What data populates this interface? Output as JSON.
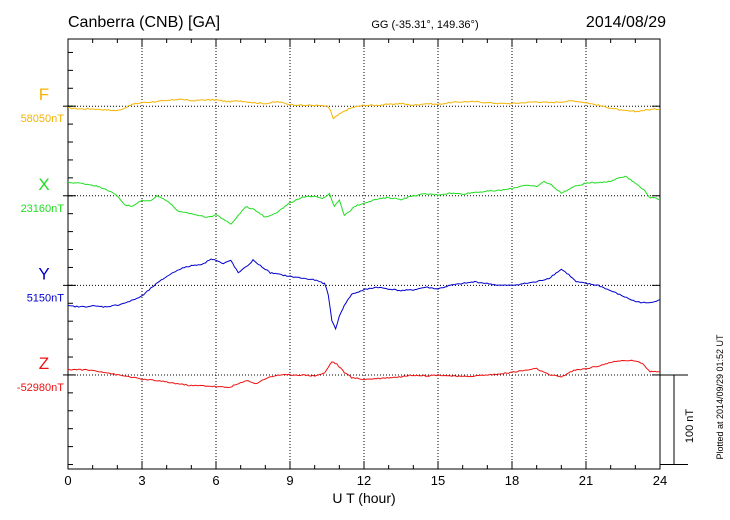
{
  "header": {
    "station": "Canberra (CNB)  [GA]",
    "coords": "GG (-35.31°, 149.36°)",
    "date": "2014/08/29"
  },
  "footer": {
    "plotted": "Plotted at 2014/09/29 01:52 UT"
  },
  "chart_data": {
    "type": "line",
    "title": "Canberra (CNB)  [GA]",
    "xlabel": "U T (hour)",
    "ylabel": "",
    "xlim": [
      0,
      24
    ],
    "x_ticks": [
      0,
      3,
      6,
      9,
      12,
      15,
      18,
      21,
      24
    ],
    "x_tick_labels": [
      "0",
      "3",
      "6",
      "9",
      "12",
      "15",
      "18",
      "21",
      "24"
    ],
    "grid": true,
    "scale_bar_label": "100 nT",
    "scale_bar_nT": 100,
    "stack_spacing_nT": 100,
    "y_range_nT": [
      -105,
      375
    ],
    "series": [
      {
        "name": "F",
        "baseline_label": "58050nT",
        "baseline_nT": 58050,
        "stack_offset_nT": 300,
        "color": "#f5b400",
        "x": [
          0,
          0.5,
          1,
          1.5,
          2,
          2.3,
          2.6,
          3,
          3.5,
          4,
          4.5,
          5,
          5.5,
          6,
          6.5,
          7,
          7.5,
          8,
          8.5,
          9,
          9.5,
          10,
          10.5,
          10.65,
          10.75,
          11,
          11.3,
          11.6,
          12,
          12.5,
          13,
          13.5,
          14,
          14.5,
          15,
          15.5,
          16,
          16.5,
          17,
          17.5,
          18,
          18.5,
          19,
          19.5,
          20,
          20.5,
          21,
          21.5,
          22,
          22.5,
          23,
          23.5,
          24
        ],
        "y": [
          -2,
          -3,
          -3,
          -4,
          -5,
          -2,
          2,
          4,
          5,
          6,
          8,
          6,
          7,
          7,
          5,
          6,
          4,
          3,
          5,
          2,
          1,
          1,
          0,
          -5,
          -14,
          -9,
          -4,
          -1,
          1,
          1,
          2,
          3,
          1,
          3,
          2,
          4,
          5,
          5,
          4,
          3,
          3,
          4,
          5,
          4,
          5,
          6,
          4,
          1,
          -2,
          -5,
          -6,
          -4,
          -3
        ]
      },
      {
        "name": "X",
        "baseline_label": "23160nT",
        "baseline_nT": 23160,
        "stack_offset_nT": 200,
        "color": "#22dd22",
        "x": [
          0,
          0.5,
          1,
          1.5,
          2,
          2.3,
          2.6,
          3,
          3.3,
          3.6,
          4,
          4.5,
          5,
          5.3,
          5.7,
          6,
          6.3,
          6.6,
          6.9,
          7.2,
          7.6,
          8,
          8.5,
          9,
          9.5,
          10,
          10.3,
          10.6,
          10.8,
          11,
          11.2,
          11.4,
          11.6,
          12,
          12.5,
          13,
          13.5,
          14,
          14.5,
          15,
          15.5,
          16,
          16.5,
          17,
          17.5,
          18,
          18.5,
          19,
          19.3,
          19.6,
          20,
          20.5,
          21,
          21.5,
          22,
          22.3,
          22.6,
          23,
          23.3,
          23.6,
          24
        ],
        "y": [
          15,
          14,
          12,
          8,
          0,
          -10,
          -12,
          -5,
          -6,
          0,
          -5,
          -18,
          -20,
          -22,
          -24,
          -21,
          -26,
          -32,
          -22,
          -12,
          -16,
          -24,
          -18,
          -8,
          -2,
          0,
          -3,
          2,
          -12,
          -5,
          -22,
          -18,
          -12,
          -8,
          -4,
          -2,
          -4,
          0,
          2,
          1,
          3,
          2,
          4,
          5,
          6,
          8,
          12,
          10,
          16,
          12,
          3,
          10,
          14,
          15,
          16,
          20,
          22,
          14,
          8,
          -2,
          -4
        ]
      },
      {
        "name": "Y",
        "baseline_label": "5150nT",
        "baseline_nT": 5150,
        "stack_offset_nT": 100,
        "color": "#0000cc",
        "x": [
          0,
          0.5,
          1,
          1.5,
          2,
          2.5,
          3,
          3.5,
          4,
          4.5,
          5,
          5.5,
          5.8,
          6,
          6.3,
          6.6,
          6.9,
          7.2,
          7.5,
          7.8,
          8.2,
          8.6,
          9,
          9.5,
          10,
          10.4,
          10.55,
          10.7,
          10.85,
          11,
          11.2,
          11.5,
          12,
          12.5,
          13,
          13.5,
          14,
          14.5,
          15,
          15.5,
          16,
          16.5,
          17,
          17.5,
          18,
          18.5,
          19,
          19.5,
          20,
          20.3,
          20.6,
          21,
          21.5,
          22,
          22.5,
          23,
          23.5,
          24
        ],
        "y": [
          -23,
          -24,
          -23,
          -24,
          -22,
          -18,
          -12,
          0,
          10,
          18,
          22,
          24,
          30,
          28,
          24,
          28,
          14,
          20,
          28,
          22,
          14,
          12,
          10,
          8,
          6,
          2,
          -10,
          -40,
          -48,
          -35,
          -22,
          -10,
          -5,
          -2,
          -4,
          -6,
          -5,
          -2,
          -4,
          0,
          2,
          4,
          2,
          0,
          0,
          2,
          4,
          8,
          18,
          12,
          4,
          2,
          0,
          -6,
          -12,
          -18,
          -20,
          -16
        ]
      },
      {
        "name": "Z",
        "baseline_label": "-52980nT",
        "baseline_nT": -52980,
        "stack_offset_nT": 0,
        "color": "#ee1111",
        "x": [
          0,
          0.5,
          1,
          1.5,
          2,
          2.5,
          3,
          3.5,
          4,
          4.5,
          5,
          5.5,
          6,
          6.5,
          7,
          7.3,
          7.6,
          8,
          8.5,
          9,
          9.5,
          10,
          10.4,
          10.7,
          10.9,
          11.2,
          11.5,
          12,
          12.5,
          13,
          13.5,
          14,
          14.5,
          15,
          15.5,
          16,
          16.5,
          17,
          17.5,
          18,
          18.5,
          19,
          19.5,
          20,
          20.5,
          21,
          21.5,
          22,
          22.5,
          23,
          23.3,
          23.6,
          24
        ],
        "y": [
          6,
          6,
          5,
          3,
          0,
          -2,
          -5,
          -6,
          -8,
          -10,
          -12,
          -12,
          -13,
          -14,
          -9,
          -6,
          -10,
          -4,
          0,
          0,
          0,
          -1,
          2,
          15,
          12,
          3,
          -3,
          -5,
          -4,
          -3,
          -2,
          0,
          -1,
          0,
          -1,
          -2,
          -1,
          0,
          1,
          3,
          5,
          7,
          0,
          -2,
          5,
          7,
          10,
          14,
          16,
          16,
          12,
          4,
          4
        ]
      }
    ]
  }
}
